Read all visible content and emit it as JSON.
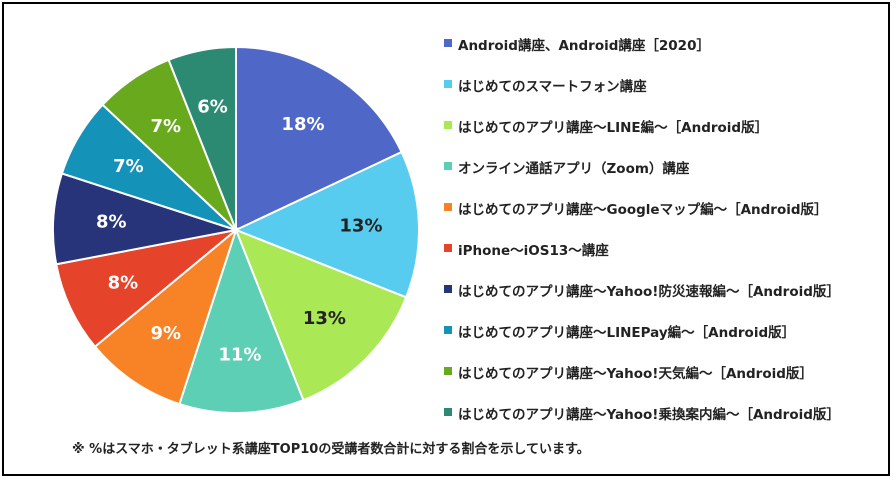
{
  "chart_data": {
    "type": "pie",
    "title": "",
    "series": [
      {
        "name": "Android講座、Android講座［2020］",
        "value": 18,
        "label": "18%",
        "color": "#4F67C7"
      },
      {
        "name": "はじめてのスマートフォン講座",
        "value": 13,
        "label": "13%",
        "color": "#57CCEF"
      },
      {
        "name": "はじめてのアプリ講座～LINE編～［Android版］",
        "value": 13,
        "label": "13%",
        "color": "#AAE856"
      },
      {
        "name": "オンライン通話アプリ（Zoom）講座",
        "value": 11,
        "label": "11%",
        "color": "#5CCFB4"
      },
      {
        "name": "はじめてのアプリ講座～Googleマップ編～［Android版］",
        "value": 9,
        "label": "9%",
        "color": "#F88226"
      },
      {
        "name": "iPhone～iOS13～講座",
        "value": 8,
        "label": "8%",
        "color": "#E5432A"
      },
      {
        "name": "はじめてのアプリ講座～Yahoo!防災速報編～［Android版］",
        "value": 8,
        "label": "8%",
        "color": "#27347A"
      },
      {
        "name": "はじめてのアプリ講座～LINEPay編～［Android版］",
        "value": 7,
        "label": "7%",
        "color": "#1592B7"
      },
      {
        "name": "はじめてのアプリ講座～Yahoo!天気編～［Android版］",
        "value": 7,
        "label": "7%",
        "color": "#69A91E"
      },
      {
        "name": "はじめてのアプリ講座～Yahoo!乗換案内編～［Android版］",
        "value": 6,
        "label": "6%",
        "color": "#2C8A72"
      }
    ],
    "legend_position": "right",
    "start_angle_deg": 0,
    "direction": "clockwise"
  },
  "footnote": "※ %はスマホ・タブレット系講座TOP10の受講者数合計に対する割合を示しています。"
}
